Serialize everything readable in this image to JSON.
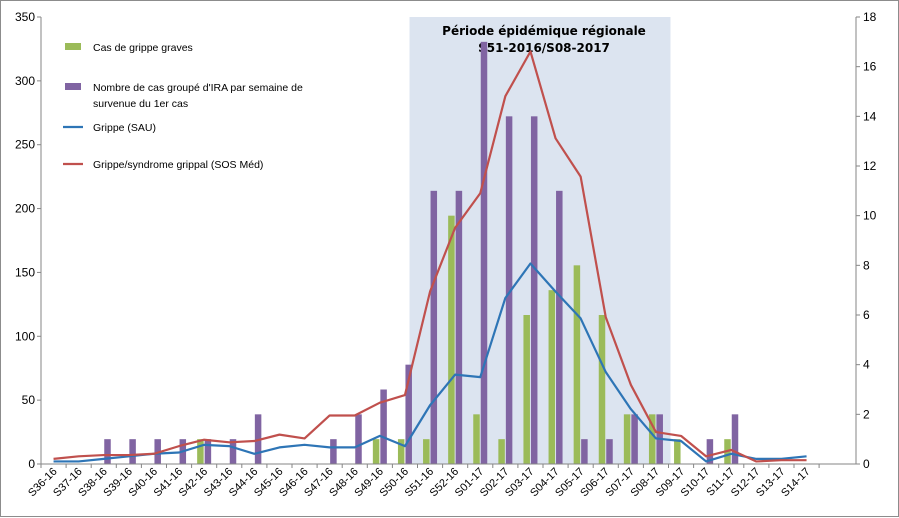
{
  "chart_data": {
    "type": "bar",
    "x": [
      "S36-16",
      "S37-16",
      "S38-16",
      "S39-16",
      "S40-16",
      "S41-16",
      "S42-16",
      "S43-16",
      "S44-16",
      "S45-16",
      "S46-16",
      "S47-16",
      "S48-16",
      "S49-16",
      "S50-16",
      "S51-16",
      "S52-16",
      "S01-17",
      "S02-17",
      "S03-17",
      "S04-17",
      "S05-17",
      "S06-17",
      "S07-17",
      "S08-17",
      "S09-17",
      "S10-17",
      "S11-17",
      "S12-17",
      "S13-17",
      "S14-17"
    ],
    "left_axis": {
      "ylim": [
        0,
        350
      ],
      "ticks": [
        0,
        50,
        100,
        150,
        200,
        250,
        300,
        350
      ]
    },
    "right_axis": {
      "ylim": [
        0,
        18
      ],
      "ticks": [
        0,
        2,
        4,
        6,
        8,
        10,
        12,
        14,
        16,
        18
      ]
    },
    "shaded_period": {
      "start": "S51-16",
      "end": "S08-17",
      "title_line1": "Période épidémique régionale",
      "title_line2": "S51-2016/S08-2017",
      "color": "#dce4f0"
    },
    "series": [
      {
        "name": "Cas de grippe graves",
        "kind": "bar",
        "axis": "right",
        "color": "#9bbb59",
        "values": [
          0,
          0,
          0,
          0,
          0,
          0,
          1,
          0,
          0,
          0,
          0,
          0,
          0,
          1,
          1,
          1,
          10,
          2,
          1,
          6,
          7,
          8,
          6,
          2,
          2,
          1,
          0,
          1,
          0,
          0,
          0
        ]
      },
      {
        "name": "Nombre de cas groupé d'IRA par semaine de survenue du 1er cas",
        "kind": "bar",
        "axis": "right",
        "color": "#8064a2",
        "values": [
          0,
          0,
          1,
          1,
          1,
          1,
          1,
          1,
          2,
          0,
          0,
          1,
          2,
          3,
          4,
          11,
          11,
          17,
          14,
          14,
          11,
          1,
          1,
          2,
          2,
          0,
          1,
          2,
          0,
          0,
          0
        ]
      },
      {
        "name": "Grippe (SAU)",
        "kind": "line",
        "axis": "left",
        "color": "#2e75b6",
        "values": [
          2,
          2,
          4,
          6,
          8,
          9,
          15,
          14,
          8,
          13,
          15,
          13,
          13,
          22,
          14,
          46,
          70,
          68,
          130,
          157,
          135,
          114,
          72,
          43,
          20,
          18,
          2,
          8,
          4,
          4,
          6
        ]
      },
      {
        "name": "Grippe/syndrome grippal (SOS Méd)",
        "kind": "line",
        "axis": "left",
        "color": "#c0504d",
        "values": [
          4,
          6,
          7,
          7,
          8,
          14,
          19,
          17,
          18,
          23,
          20,
          38,
          38,
          48,
          54,
          135,
          185,
          212,
          288,
          323,
          255,
          225,
          115,
          62,
          25,
          22,
          6,
          11,
          2,
          3,
          3
        ]
      }
    ],
    "legend_position": "top-left",
    "grid": false
  }
}
